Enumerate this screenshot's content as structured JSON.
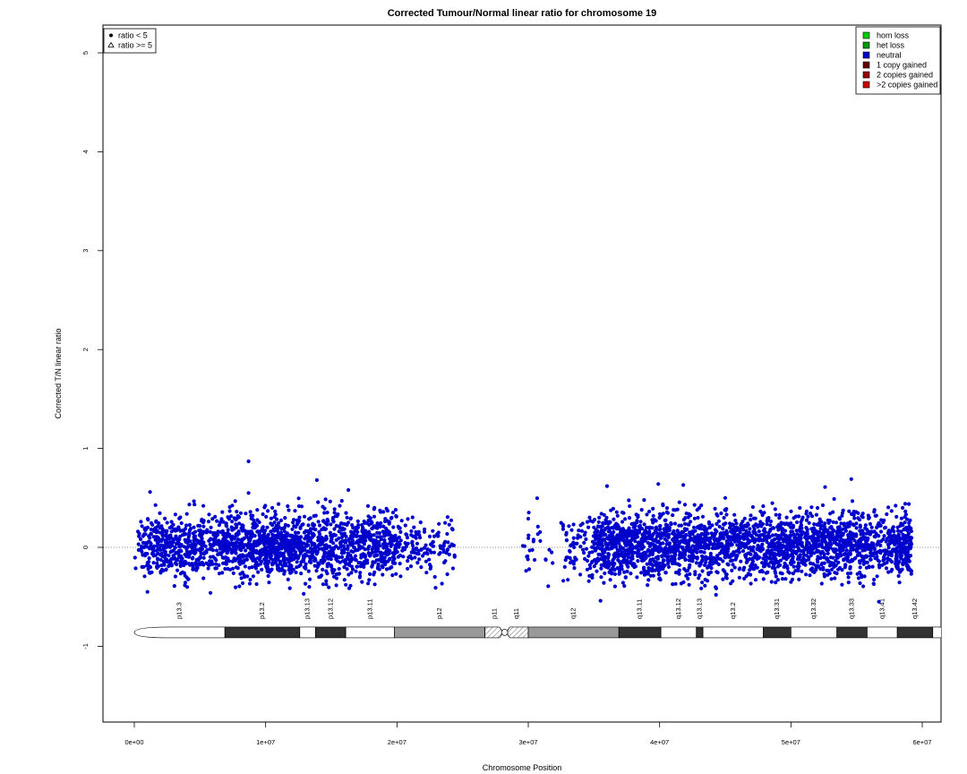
{
  "chart_data": {
    "type": "scatter",
    "title": "Corrected Tumour/Normal linear ratio for chromosome  19",
    "xlabel": "Chromosome Position",
    "ylabel": "Corrected T/N linear ratio",
    "xlim": [
      -1000000,
      61700000
    ],
    "ylim": [
      -1.75,
      5.25
    ],
    "x_ticks": [
      0,
      10000000,
      20000000,
      30000000,
      40000000,
      50000000,
      60000000
    ],
    "x_tick_labels": [
      "0e+00",
      "1e+07",
      "2e+07",
      "3e+07",
      "4e+07",
      "5e+07",
      "6e+07"
    ],
    "y_ticks": [
      -1,
      0,
      1,
      2,
      3,
      4,
      5
    ],
    "y_tick_labels": [
      "-1",
      "0",
      "1",
      "2",
      "3",
      "4",
      "5"
    ],
    "reference_line": {
      "y": 0,
      "style": "dotted"
    },
    "point_color": "#0000cc",
    "point_density_bins_mb": [
      {
        "start": 0.0,
        "end": 0.5,
        "n": 8
      },
      {
        "start": 0.5,
        "end": 1.0,
        "n": 28
      },
      {
        "start": 1.0,
        "end": 1.5,
        "n": 38
      },
      {
        "start": 1.5,
        "end": 2.0,
        "n": 42
      },
      {
        "start": 2.0,
        "end": 2.5,
        "n": 44
      },
      {
        "start": 2.5,
        "end": 3.0,
        "n": 42
      },
      {
        "start": 3.0,
        "end": 3.5,
        "n": 44
      },
      {
        "start": 3.5,
        "end": 4.0,
        "n": 46
      },
      {
        "start": 4.0,
        "end": 4.5,
        "n": 44
      },
      {
        "start": 4.5,
        "end": 5.0,
        "n": 40
      },
      {
        "start": 5.0,
        "end": 5.5,
        "n": 40
      },
      {
        "start": 5.5,
        "end": 6.0,
        "n": 26
      },
      {
        "start": 6.0,
        "end": 6.5,
        "n": 32
      },
      {
        "start": 6.5,
        "end": 7.0,
        "n": 48
      },
      {
        "start": 7.0,
        "end": 7.5,
        "n": 48
      },
      {
        "start": 7.5,
        "end": 8.0,
        "n": 48
      },
      {
        "start": 8.0,
        "end": 8.5,
        "n": 50
      },
      {
        "start": 8.5,
        "end": 9.0,
        "n": 52
      },
      {
        "start": 9.0,
        "end": 9.5,
        "n": 54
      },
      {
        "start": 9.5,
        "end": 10.0,
        "n": 56
      },
      {
        "start": 10.0,
        "end": 10.5,
        "n": 58
      },
      {
        "start": 10.5,
        "end": 11.0,
        "n": 62
      },
      {
        "start": 11.0,
        "end": 11.5,
        "n": 66
      },
      {
        "start": 11.5,
        "end": 12.0,
        "n": 64
      },
      {
        "start": 12.0,
        "end": 12.5,
        "n": 50
      },
      {
        "start": 12.5,
        "end": 13.0,
        "n": 50
      },
      {
        "start": 13.0,
        "end": 13.5,
        "n": 48
      },
      {
        "start": 13.5,
        "end": 14.0,
        "n": 44
      },
      {
        "start": 14.0,
        "end": 14.5,
        "n": 46
      },
      {
        "start": 14.5,
        "end": 15.0,
        "n": 46
      },
      {
        "start": 15.0,
        "end": 15.5,
        "n": 44
      },
      {
        "start": 15.5,
        "end": 16.0,
        "n": 42
      },
      {
        "start": 16.0,
        "end": 16.5,
        "n": 40
      },
      {
        "start": 16.5,
        "end": 17.0,
        "n": 40
      },
      {
        "start": 17.0,
        "end": 17.5,
        "n": 46
      },
      {
        "start": 17.5,
        "end": 18.0,
        "n": 46
      },
      {
        "start": 18.0,
        "end": 18.5,
        "n": 46
      },
      {
        "start": 18.5,
        "end": 19.0,
        "n": 48
      },
      {
        "start": 19.0,
        "end": 19.5,
        "n": 46
      },
      {
        "start": 19.5,
        "end": 20.0,
        "n": 40
      },
      {
        "start": 20.0,
        "end": 20.5,
        "n": 22
      },
      {
        "start": 20.5,
        "end": 21.0,
        "n": 14
      },
      {
        "start": 21.0,
        "end": 21.5,
        "n": 22
      },
      {
        "start": 21.5,
        "end": 22.0,
        "n": 14
      },
      {
        "start": 22.0,
        "end": 22.5,
        "n": 12
      },
      {
        "start": 22.5,
        "end": 23.0,
        "n": 16
      },
      {
        "start": 23.0,
        "end": 23.5,
        "n": 10
      },
      {
        "start": 23.5,
        "end": 24.0,
        "n": 18
      },
      {
        "start": 24.0,
        "end": 24.4,
        "n": 10
      },
      {
        "start": 29.5,
        "end": 30.0,
        "n": 6
      },
      {
        "start": 30.0,
        "end": 30.5,
        "n": 10
      },
      {
        "start": 30.5,
        "end": 31.0,
        "n": 5
      },
      {
        "start": 31.0,
        "end": 31.5,
        "n": 2
      },
      {
        "start": 31.5,
        "end": 32.0,
        "n": 4
      },
      {
        "start": 32.5,
        "end": 33.0,
        "n": 12
      },
      {
        "start": 33.0,
        "end": 33.5,
        "n": 18
      },
      {
        "start": 33.5,
        "end": 34.0,
        "n": 12
      },
      {
        "start": 34.0,
        "end": 34.5,
        "n": 12
      },
      {
        "start": 34.5,
        "end": 35.0,
        "n": 20
      },
      {
        "start": 35.0,
        "end": 35.5,
        "n": 42
      },
      {
        "start": 35.5,
        "end": 36.0,
        "n": 56
      },
      {
        "start": 36.0,
        "end": 36.5,
        "n": 60
      },
      {
        "start": 36.5,
        "end": 37.0,
        "n": 64
      },
      {
        "start": 37.0,
        "end": 37.5,
        "n": 60
      },
      {
        "start": 37.5,
        "end": 38.0,
        "n": 58
      },
      {
        "start": 38.0,
        "end": 38.5,
        "n": 48
      },
      {
        "start": 38.5,
        "end": 39.0,
        "n": 50
      },
      {
        "start": 39.0,
        "end": 39.5,
        "n": 56
      },
      {
        "start": 39.5,
        "end": 40.0,
        "n": 54
      },
      {
        "start": 40.0,
        "end": 40.5,
        "n": 50
      },
      {
        "start": 40.5,
        "end": 41.0,
        "n": 46
      },
      {
        "start": 41.0,
        "end": 41.5,
        "n": 52
      },
      {
        "start": 41.5,
        "end": 42.0,
        "n": 50
      },
      {
        "start": 42.0,
        "end": 42.5,
        "n": 48
      },
      {
        "start": 42.5,
        "end": 43.0,
        "n": 50
      },
      {
        "start": 43.0,
        "end": 43.5,
        "n": 54
      },
      {
        "start": 43.5,
        "end": 44.0,
        "n": 50
      },
      {
        "start": 44.0,
        "end": 44.5,
        "n": 40
      },
      {
        "start": 44.5,
        "end": 45.0,
        "n": 48
      },
      {
        "start": 45.0,
        "end": 45.5,
        "n": 52
      },
      {
        "start": 45.5,
        "end": 46.0,
        "n": 46
      },
      {
        "start": 46.0,
        "end": 46.5,
        "n": 44
      },
      {
        "start": 46.5,
        "end": 47.0,
        "n": 46
      },
      {
        "start": 47.0,
        "end": 47.5,
        "n": 44
      },
      {
        "start": 47.5,
        "end": 48.0,
        "n": 46
      },
      {
        "start": 48.0,
        "end": 48.5,
        "n": 48
      },
      {
        "start": 48.5,
        "end": 49.0,
        "n": 56
      },
      {
        "start": 49.0,
        "end": 49.5,
        "n": 58
      },
      {
        "start": 49.5,
        "end": 50.0,
        "n": 58
      },
      {
        "start": 50.0,
        "end": 50.5,
        "n": 56
      },
      {
        "start": 50.5,
        "end": 51.0,
        "n": 54
      },
      {
        "start": 51.0,
        "end": 51.5,
        "n": 50
      },
      {
        "start": 51.5,
        "end": 52.0,
        "n": 48
      },
      {
        "start": 52.0,
        "end": 52.5,
        "n": 50
      },
      {
        "start": 52.5,
        "end": 53.0,
        "n": 52
      },
      {
        "start": 53.0,
        "end": 53.5,
        "n": 46
      },
      {
        "start": 53.5,
        "end": 54.0,
        "n": 48
      },
      {
        "start": 54.0,
        "end": 54.5,
        "n": 50
      },
      {
        "start": 54.5,
        "end": 55.0,
        "n": 56
      },
      {
        "start": 55.0,
        "end": 55.5,
        "n": 50
      },
      {
        "start": 55.5,
        "end": 56.0,
        "n": 46
      },
      {
        "start": 56.0,
        "end": 56.5,
        "n": 36
      },
      {
        "start": 56.5,
        "end": 57.0,
        "n": 28
      },
      {
        "start": 57.0,
        "end": 57.5,
        "n": 34
      },
      {
        "start": 57.5,
        "end": 58.0,
        "n": 40
      },
      {
        "start": 58.0,
        "end": 58.5,
        "n": 56
      },
      {
        "start": 58.5,
        "end": 59.0,
        "n": 60
      },
      {
        "start": 59.0,
        "end": 59.2,
        "n": 22
      }
    ],
    "point_spread": {
      "center": 0.02,
      "sd": 0.16
    },
    "notable_points": [
      {
        "x": 1000000.0,
        "y": -0.45
      },
      {
        "x": 1200000.0,
        "y": 0.56
      },
      {
        "x": 5800000.0,
        "y": -0.46
      },
      {
        "x": 8700000.0,
        "y": 0.87
      },
      {
        "x": 8700000.0,
        "y": 0.55
      },
      {
        "x": 13900000.0,
        "y": 0.68
      },
      {
        "x": 16300000.0,
        "y": 0.58
      },
      {
        "x": 12900000.0,
        "y": -0.47
      },
      {
        "x": 35500000.0,
        "y": -0.54
      },
      {
        "x": 36000000.0,
        "y": 0.62
      },
      {
        "x": 39900000.0,
        "y": 0.64
      },
      {
        "x": 41800000.0,
        "y": 0.63
      },
      {
        "x": 45000000.0,
        "y": 0.5
      },
      {
        "x": 44300000.0,
        "y": -0.48
      },
      {
        "x": 52600000.0,
        "y": 0.61
      },
      {
        "x": 54600000.0,
        "y": 0.69
      },
      {
        "x": 56700000.0,
        "y": -0.55
      },
      {
        "x": 58700000.0,
        "y": 0.44
      }
    ],
    "legend_shapes": [
      {
        "symbol": "filled-circle",
        "label": "ratio < 5"
      },
      {
        "symbol": "open-triangle",
        "label": "ratio >= 5"
      }
    ],
    "legend_shapes_position": "top-left",
    "legend_states": [
      {
        "label": "hom loss",
        "color": "#00cc00"
      },
      {
        "label": "het loss",
        "color": "#009900"
      },
      {
        "label": "neutral",
        "color": "#0000cc"
      },
      {
        "label": "1 copy gained",
        "color": "#660000"
      },
      {
        "label": "2 copies gained",
        "color": "#990000"
      },
      {
        "label": ">2 copies gained",
        "color": "#cc0000"
      }
    ],
    "legend_states_position": "top-right",
    "ideogram": {
      "y": -0.86,
      "centromere_mb": 28.2,
      "bands": [
        {
          "name": "p13.3",
          "start": 0.0,
          "end": 6.9,
          "stain": "gneg"
        },
        {
          "name": "p13.2",
          "start": 6.9,
          "end": 12.6,
          "stain": "gpos75"
        },
        {
          "name": "p13.13",
          "start": 12.6,
          "end": 13.8,
          "stain": "gneg"
        },
        {
          "name": "p13.12",
          "start": 13.8,
          "end": 16.1,
          "stain": "gpos75"
        },
        {
          "name": "p13.11",
          "start": 16.1,
          "end": 19.8,
          "stain": "gneg"
        },
        {
          "name": "p12",
          "start": 19.8,
          "end": 26.7,
          "stain": "gvar"
        },
        {
          "name": "p11",
          "start": 26.7,
          "end": 28.2,
          "stain": "acen"
        },
        {
          "name": "q11",
          "start": 28.2,
          "end": 30.0,
          "stain": "acen"
        },
        {
          "name": "q12",
          "start": 30.0,
          "end": 36.9,
          "stain": "gvar"
        },
        {
          "name": "q13.11",
          "start": 36.9,
          "end": 40.1,
          "stain": "gpos75"
        },
        {
          "name": "q13.12",
          "start": 40.1,
          "end": 42.8,
          "stain": "gneg"
        },
        {
          "name": "q13.13",
          "start": 42.8,
          "end": 43.3,
          "stain": "gpos75"
        },
        {
          "name": "q13.2",
          "start": 43.3,
          "end": 47.9,
          "stain": "gneg"
        },
        {
          "name": "q13.31",
          "start": 47.9,
          "end": 50.0,
          "stain": "gpos75"
        },
        {
          "name": "q13.32",
          "start": 50.0,
          "end": 53.5,
          "stain": "gneg"
        },
        {
          "name": "q13.33",
          "start": 53.5,
          "end": 55.8,
          "stain": "gpos75"
        },
        {
          "name": "q13.41",
          "start": 55.8,
          "end": 58.1,
          "stain": "gneg"
        },
        {
          "name": "q13.42",
          "start": 58.1,
          "end": 60.8,
          "stain": "gpos75"
        },
        {
          "name": "q13.43",
          "start": 60.8,
          "end": 63.8,
          "stain": "gneg"
        }
      ]
    }
  }
}
